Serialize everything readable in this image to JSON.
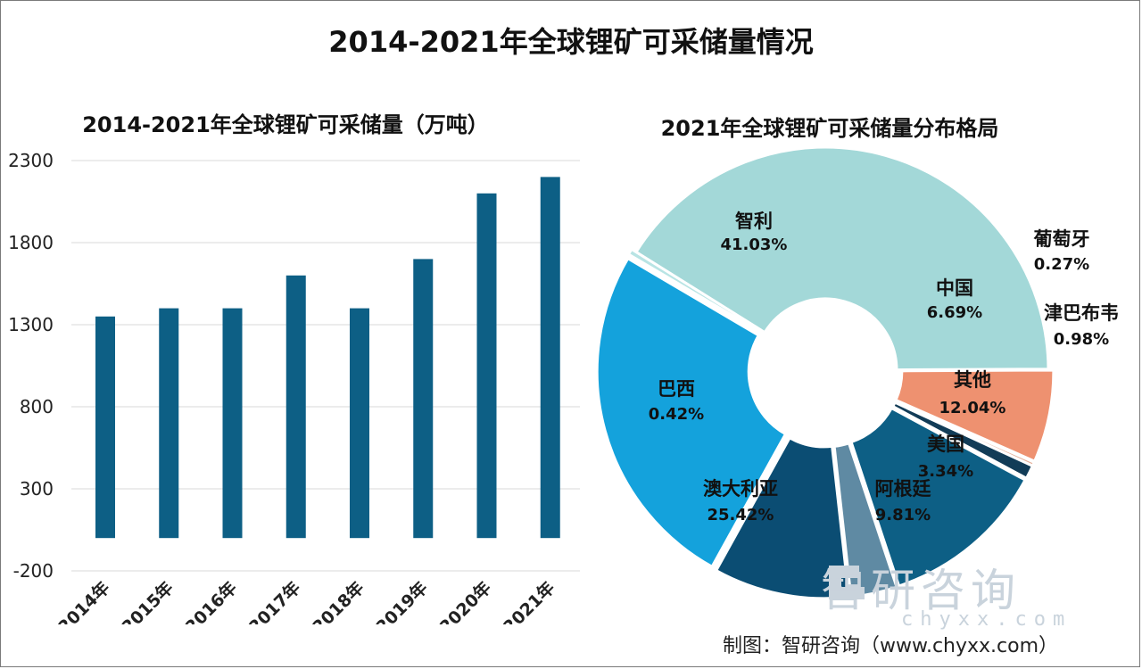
{
  "title": "2014-2021年全球锂矿可采储量情况",
  "source": "制图：智研咨询（www.chyxx.com）",
  "watermark": {
    "name": "智研咨询",
    "url": "chyxx.com"
  },
  "chart_data": [
    {
      "type": "bar",
      "title": "2014-2021年全球锂矿可采储量（万吨）",
      "categories": [
        "2014年",
        "2015年",
        "2016年",
        "2017年",
        "2018年",
        "2019年",
        "2020年",
        "2021年"
      ],
      "values": [
        1350,
        1400,
        1400,
        1600,
        1400,
        1700,
        2100,
        2200
      ],
      "y_ticks": [
        "2300",
        "1800",
        "1300",
        "800",
        "300",
        "-200"
      ],
      "ylim": [
        -200,
        2300
      ],
      "grid": true,
      "color": "#0d5f85"
    },
    {
      "type": "pie",
      "title": "2021年全球锂矿可采储量分布格局",
      "slices": [
        {
          "label": "智利",
          "value": 41.03,
          "pct": "41.03%",
          "color": "#a3d8d8"
        },
        {
          "label": "中国",
          "value": 6.69,
          "pct": "6.69%",
          "color": "#ee9170"
        },
        {
          "label": "葡萄牙",
          "value": 0.27,
          "pct": "0.27%",
          "color": "#e5b09a"
        },
        {
          "label": "津巴布韦",
          "value": 0.98,
          "pct": "0.98%",
          "color": "#123c57"
        },
        {
          "label": "其他",
          "value": 12.04,
          "pct": "12.04%",
          "color": "#0d5f85"
        },
        {
          "label": "美国",
          "value": 3.34,
          "pct": "3.34%",
          "color": "#5f8aa3"
        },
        {
          "label": "阿根廷",
          "value": 9.81,
          "pct": "9.81%",
          "color": "#0b4d73"
        },
        {
          "label": "澳大利亚",
          "value": 25.42,
          "pct": "25.42%",
          "color": "#14a2dc"
        },
        {
          "label": "巴西",
          "value": 0.42,
          "pct": "0.42%",
          "color": "#b8e4e4"
        }
      ]
    }
  ]
}
